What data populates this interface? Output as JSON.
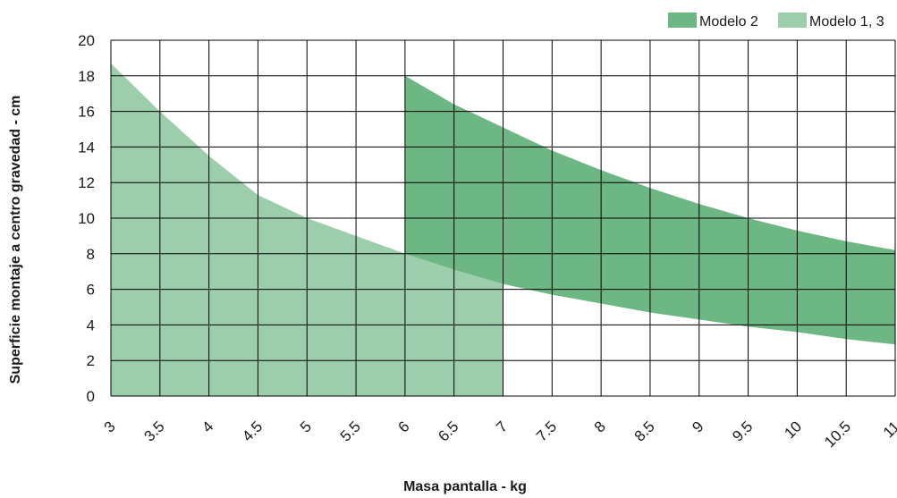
{
  "chart_data": {
    "type": "area",
    "title": "",
    "xlabel": "Masa pantalla - kg",
    "ylabel": "Superficie montaje a centro gravedad - cm",
    "xlim": [
      3,
      11
    ],
    "ylim": [
      0,
      20
    ],
    "x_ticks": [
      "3",
      "3.5",
      "4",
      "4.5",
      "5",
      "5.5",
      "6",
      "6.5",
      "7",
      "7.5",
      "8",
      "8.5",
      "9",
      "9.5",
      "10",
      "10.5",
      "11"
    ],
    "y_ticks": [
      "0",
      "2",
      "4",
      "6",
      "8",
      "10",
      "12",
      "14",
      "16",
      "18",
      "20"
    ],
    "grid": true,
    "legend_position": "top-right",
    "series": [
      {
        "name": "Modelo 2",
        "color": "#6db784",
        "upper": {
          "x": [
            6,
            6.5,
            7,
            7.5,
            8,
            8.5,
            9,
            9.5,
            10,
            10.5,
            11
          ],
          "y": [
            18.0,
            16.4,
            15.1,
            13.8,
            12.7,
            11.7,
            10.8,
            10.0,
            9.3,
            8.7,
            8.2
          ]
        },
        "lower": {
          "x": [
            6,
            6.5,
            7,
            7.5,
            8,
            8.5,
            9,
            9.5,
            10,
            10.5,
            11
          ],
          "y": [
            8.0,
            7.1,
            6.3,
            5.7,
            5.2,
            4.7,
            4.3,
            3.9,
            3.6,
            3.2,
            2.9
          ]
        }
      },
      {
        "name": "Modelo 1, 3",
        "color": "#9dceac",
        "upper": {
          "x": [
            3,
            3.5,
            4,
            4.5,
            5,
            5.5,
            6,
            6.5,
            7
          ],
          "y": [
            18.7,
            16.0,
            13.5,
            11.3,
            10.0,
            9.0,
            8.0,
            7.1,
            6.3
          ]
        },
        "lower": {
          "x": [
            3,
            7
          ],
          "y": [
            0,
            0
          ]
        }
      }
    ]
  }
}
